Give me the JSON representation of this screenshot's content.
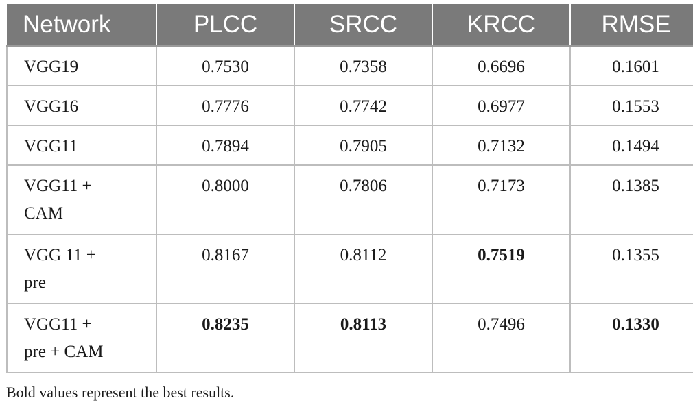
{
  "table": {
    "headers": [
      "Network",
      "PLCC",
      "SRCC",
      "KRCC",
      "RMSE"
    ],
    "rows": [
      {
        "network": "VGG19",
        "plcc": "0.7530",
        "srcc": "0.7358",
        "krcc": "0.6696",
        "rmse": "0.1601",
        "bold": []
      },
      {
        "network": "VGG16",
        "plcc": "0.7776",
        "srcc": "0.7742",
        "krcc": "0.6977",
        "rmse": "0.1553",
        "bold": []
      },
      {
        "network": "VGG11",
        "plcc": "0.7894",
        "srcc": "0.7905",
        "krcc": "0.7132",
        "rmse": "0.1494",
        "bold": []
      },
      {
        "network_line1": "VGG11 +",
        "network_line2": "CAM",
        "plcc": "0.8000",
        "srcc": "0.7806",
        "krcc": "0.7173",
        "rmse": "0.1385",
        "bold": []
      },
      {
        "network_line1": "VGG 11 +",
        "network_line2": "pre",
        "plcc": "0.8167",
        "srcc": "0.8112",
        "krcc": "0.7519",
        "rmse": "0.1355",
        "bold": [
          "krcc"
        ]
      },
      {
        "network_line1": "VGG11 +",
        "network_line2": "pre + CAM",
        "plcc": "0.8235",
        "srcc": "0.8113",
        "krcc": "0.7496",
        "rmse": "0.1330",
        "bold": [
          "plcc",
          "srcc",
          "rmse"
        ]
      }
    ]
  },
  "caption": "Bold values represent the best results."
}
